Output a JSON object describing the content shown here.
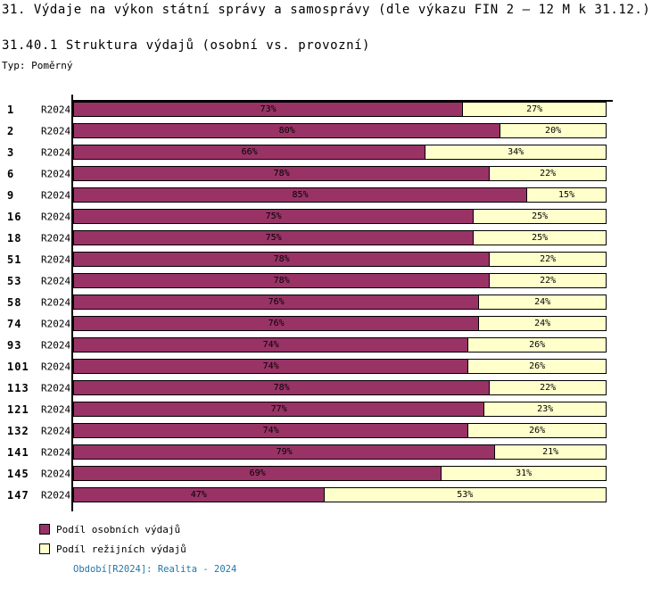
{
  "header": {
    "title": "31. Výdaje na výkon státní správy a samosprávy (dle výkazu FIN 2 – 12 M k 31.12.)",
    "subtitle": "31.40.1 Struktura výdajů (osobní vs. provozní)",
    "type_label": "Typ: Poměrný"
  },
  "chart_data": {
    "type": "bar",
    "orientation": "horizontal",
    "stacked": true,
    "grid": false,
    "xlim": [
      0,
      100
    ],
    "value_suffix": "%",
    "period_label": "R2024",
    "legend_position": "bottom-left",
    "categories": [
      "1",
      "2",
      "3",
      "6",
      "9",
      "16",
      "18",
      "51",
      "53",
      "58",
      "74",
      "93",
      "101",
      "113",
      "121",
      "132",
      "141",
      "145",
      "147"
    ],
    "series": [
      {
        "name": "Podíl osobních výdajů",
        "color": "#993366",
        "values": [
          73,
          80,
          66,
          78,
          85,
          75,
          75,
          78,
          78,
          76,
          76,
          74,
          74,
          78,
          77,
          74,
          79,
          69,
          47
        ]
      },
      {
        "name": "Podíl režijních výdajů",
        "color": "#FFFFCC",
        "values": [
          27,
          20,
          34,
          22,
          15,
          25,
          25,
          22,
          22,
          24,
          24,
          26,
          26,
          22,
          23,
          26,
          21,
          31,
          53
        ]
      }
    ]
  },
  "footer": {
    "caption": "Období[R2024]: Realita - 2024",
    "color": "#2277AA"
  }
}
